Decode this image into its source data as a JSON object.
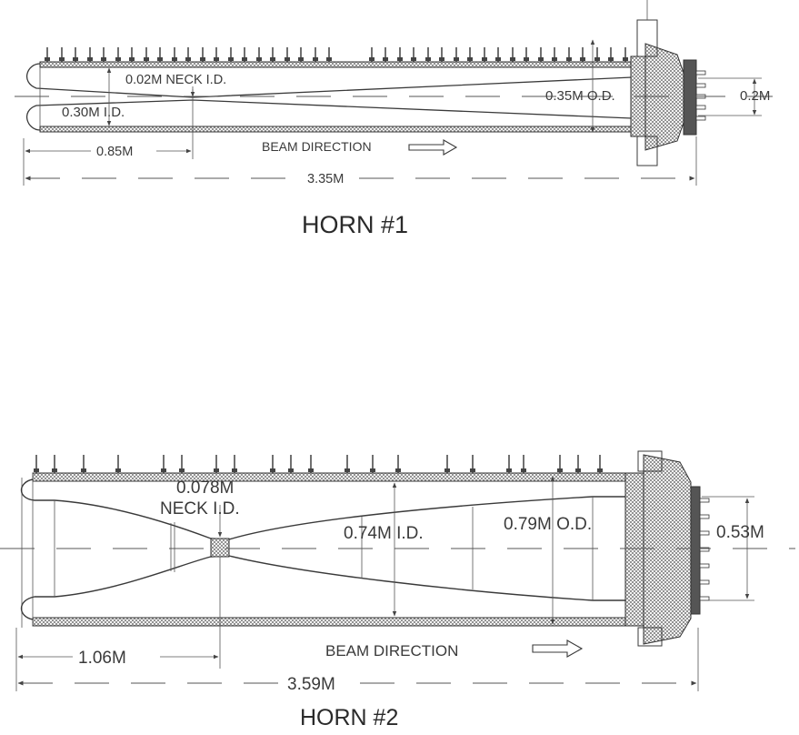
{
  "horn1": {
    "title": "HORN #1",
    "neck_id": "0.02M NECK I.D.",
    "inner_id": "0.30M I.D.",
    "outer_od": "0.35M O.D.",
    "flange_height": "0.2M",
    "neck_distance": "0.85M",
    "total_length": "3.35M",
    "beam_direction": "BEAM DIRECTION"
  },
  "horn2": {
    "title": "HORN #2",
    "neck_id_value": "0.078M",
    "neck_id_label": "NECK I.D.",
    "inner_id": "0.74M I.D.",
    "outer_od": "0.79M O.D.",
    "flange_height": "0.53M",
    "neck_distance": "1.06M",
    "total_length": "3.59M",
    "beam_direction": "BEAM DIRECTION"
  }
}
